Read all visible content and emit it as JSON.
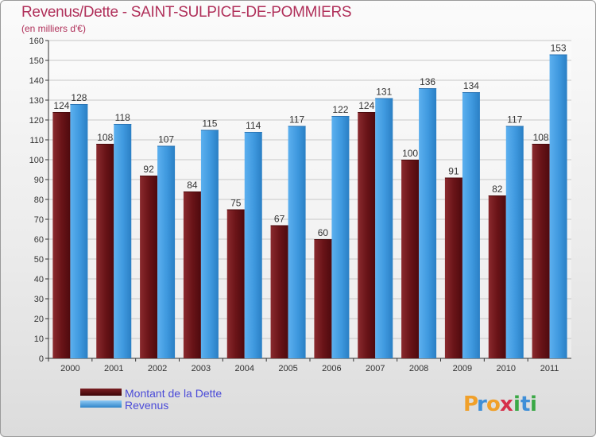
{
  "title": "Revenus/Dette - SAINT-SULPICE-DE-POMMIERS",
  "subtitle": "(en milliers d'€)",
  "brand": "Proxiti",
  "colors": {
    "title": "#b0305a",
    "debt": "#7a1e22",
    "revenue": "#3d97de",
    "legend_text": "#4b4bd8"
  },
  "chart_data": {
    "type": "bar",
    "title": "Revenus/Dette - SAINT-SULPICE-DE-POMMIERS",
    "ylabel": "(en milliers d'€)",
    "categories": [
      "2000",
      "2001",
      "2002",
      "2003",
      "2004",
      "2005",
      "2006",
      "2007",
      "2008",
      "2009",
      "2010",
      "2011"
    ],
    "ylim": [
      0,
      160
    ],
    "yticks": [
      0,
      10,
      20,
      30,
      40,
      50,
      60,
      70,
      80,
      90,
      100,
      110,
      120,
      130,
      140,
      150,
      160
    ],
    "grid": true,
    "legend_position": "bottom-left",
    "series": [
      {
        "name": "Montant de la Dette",
        "color": "#7a1e22",
        "values": [
          124,
          108,
          92,
          84,
          75,
          67,
          60,
          124,
          100,
          91,
          82,
          108
        ]
      },
      {
        "name": "Revenus",
        "color": "#3d97de",
        "values": [
          128,
          118,
          107,
          115,
          114,
          117,
          122,
          131,
          136,
          134,
          117,
          153
        ]
      }
    ]
  }
}
